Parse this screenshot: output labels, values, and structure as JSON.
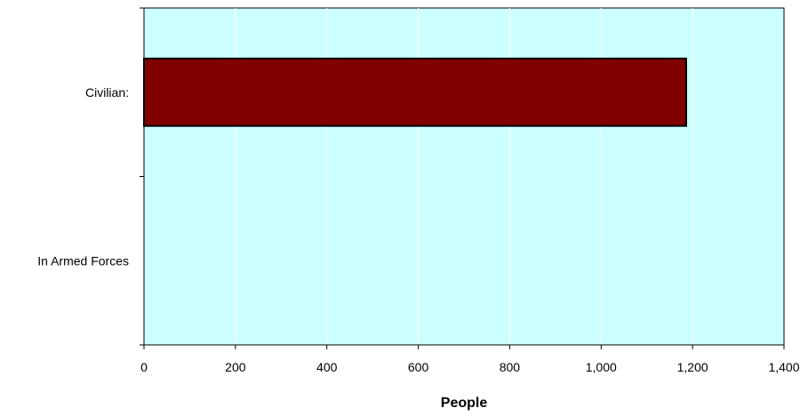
{
  "chart_data": {
    "type": "bar",
    "orientation": "horizontal",
    "categories": [
      "Civilian:",
      "In Armed Forces"
    ],
    "values": [
      1186,
      0
    ],
    "xlabel": "People",
    "ylabel": "",
    "xlim": [
      0,
      1400
    ],
    "xticks": [
      0,
      200,
      400,
      600,
      800,
      1000,
      1200,
      1400
    ],
    "xtick_labels": [
      "0",
      "200",
      "400",
      "600",
      "800",
      "1,000",
      "1,200",
      "1,400"
    ],
    "grid": "vertical",
    "legend": "none",
    "colors": {
      "plot_background": "#ccffff",
      "bar_fill": "#800000",
      "bar_stroke": "#000000",
      "gridline": "#ffffff",
      "axis": "#000000"
    }
  }
}
